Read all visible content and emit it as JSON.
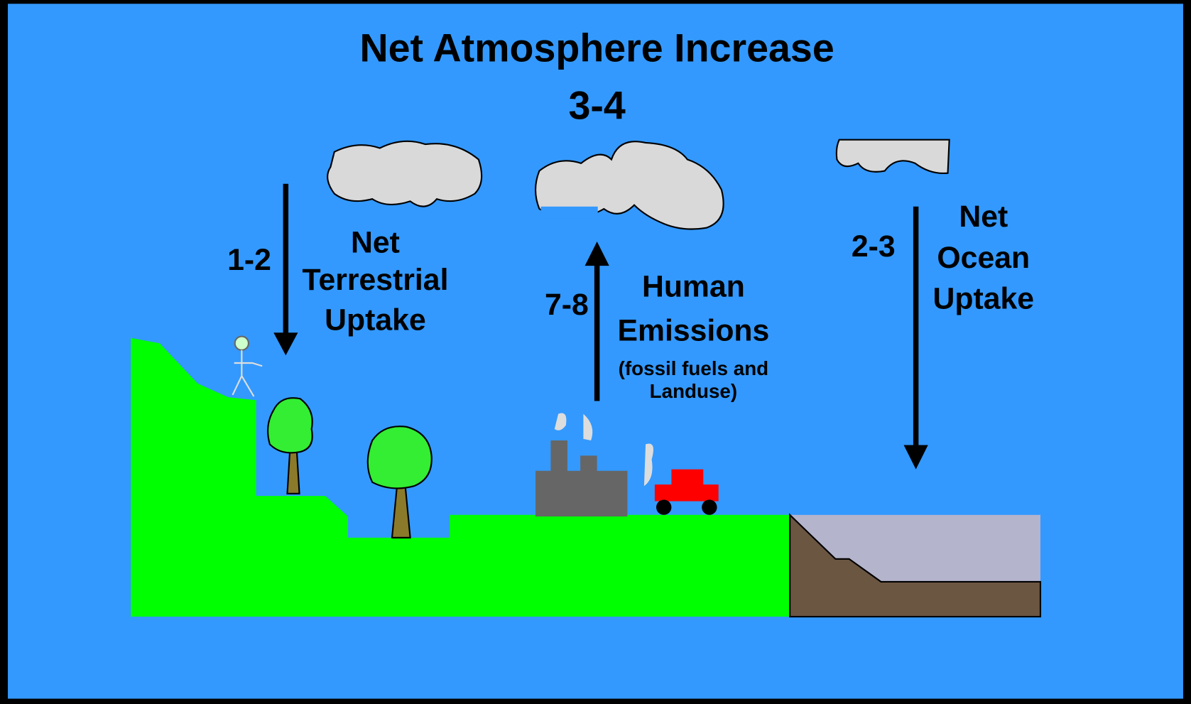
{
  "header": {
    "title": "Net Atmosphere Increase",
    "value": "3-4"
  },
  "flows": [
    {
      "value": "1-2",
      "label": [
        "Net",
        "Terrestrial",
        "Uptake"
      ]
    },
    {
      "value": "7-8",
      "label": [
        "Human",
        "Emissions"
      ],
      "note": [
        "(fossil fuels and",
        "Landuse)"
      ]
    },
    {
      "value": "2-3",
      "label": [
        "Net",
        "Ocean",
        "Uptake"
      ]
    }
  ]
}
